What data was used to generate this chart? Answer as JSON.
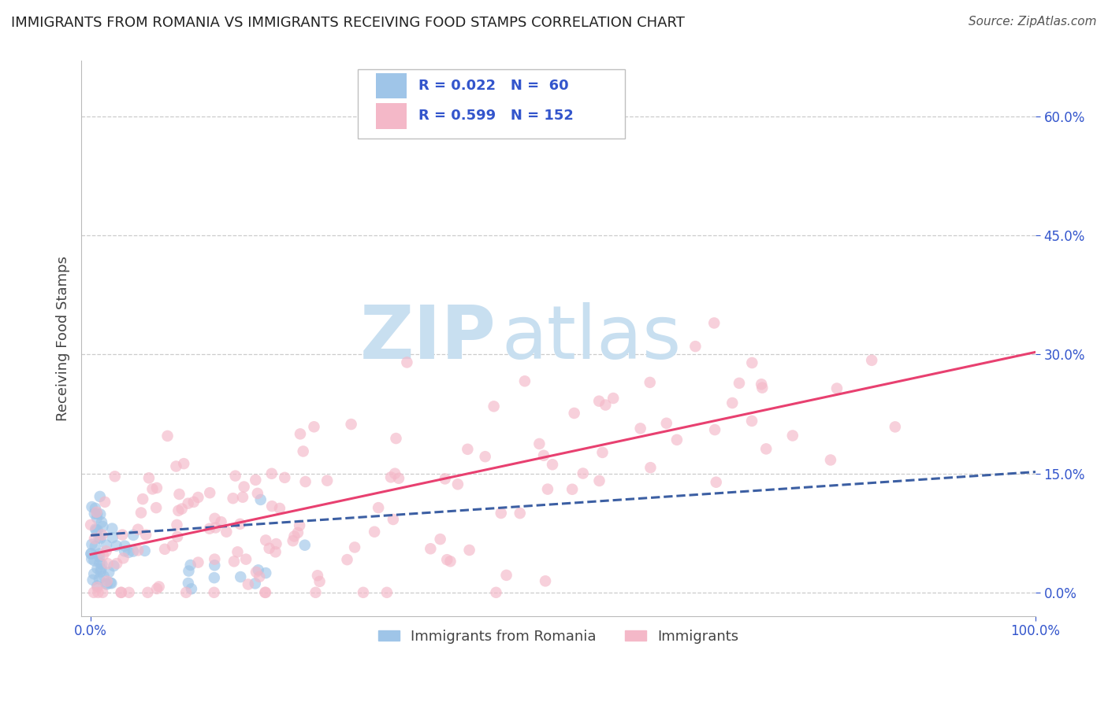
{
  "title": "IMMIGRANTS FROM ROMANIA VS IMMIGRANTS RECEIVING FOOD STAMPS CORRELATION CHART",
  "source": "Source: ZipAtlas.com",
  "ylabel": "Receiving Food Stamps",
  "xlabel": "",
  "xlim_min": -0.01,
  "xlim_max": 1.0,
  "ylim_min": -0.03,
  "ylim_max": 0.67,
  "yticks": [
    0.0,
    0.15,
    0.3,
    0.45,
    0.6
  ],
  "ytick_labels": [
    "0.0%",
    "15.0%",
    "30.0%",
    "45.0%",
    "60.0%"
  ],
  "xtick_min_label": "0.0%",
  "xtick_max_label": "100.0%",
  "blue_R": 0.022,
  "blue_N": 60,
  "pink_R": 0.599,
  "pink_N": 152,
  "blue_scatter_color": "#9fc5e8",
  "pink_scatter_color": "#f4b8c8",
  "blue_line_color": "#3c5fa3",
  "pink_line_color": "#e84070",
  "blue_line_intercept": 0.072,
  "blue_line_slope": 0.08,
  "pink_line_intercept": 0.048,
  "pink_line_slope": 0.255,
  "watermark_zip": "ZIP",
  "watermark_atlas": "atlas",
  "watermark_color": "#c8dff0",
  "legend_label_blue": "Immigrants from Romania",
  "legend_label_pink": "Immigrants",
  "background_color": "#ffffff",
  "grid_color": "#cccccc",
  "title_color": "#222222",
  "axis_label_color": "#444444",
  "tick_color": "#3355cc",
  "legend_text_color": "#3355cc",
  "title_fontsize": 13,
  "axis_label_fontsize": 13,
  "tick_fontsize": 12,
  "legend_fontsize": 13,
  "scatter_size": 110,
  "scatter_alpha": 0.65,
  "source_fontsize": 11
}
